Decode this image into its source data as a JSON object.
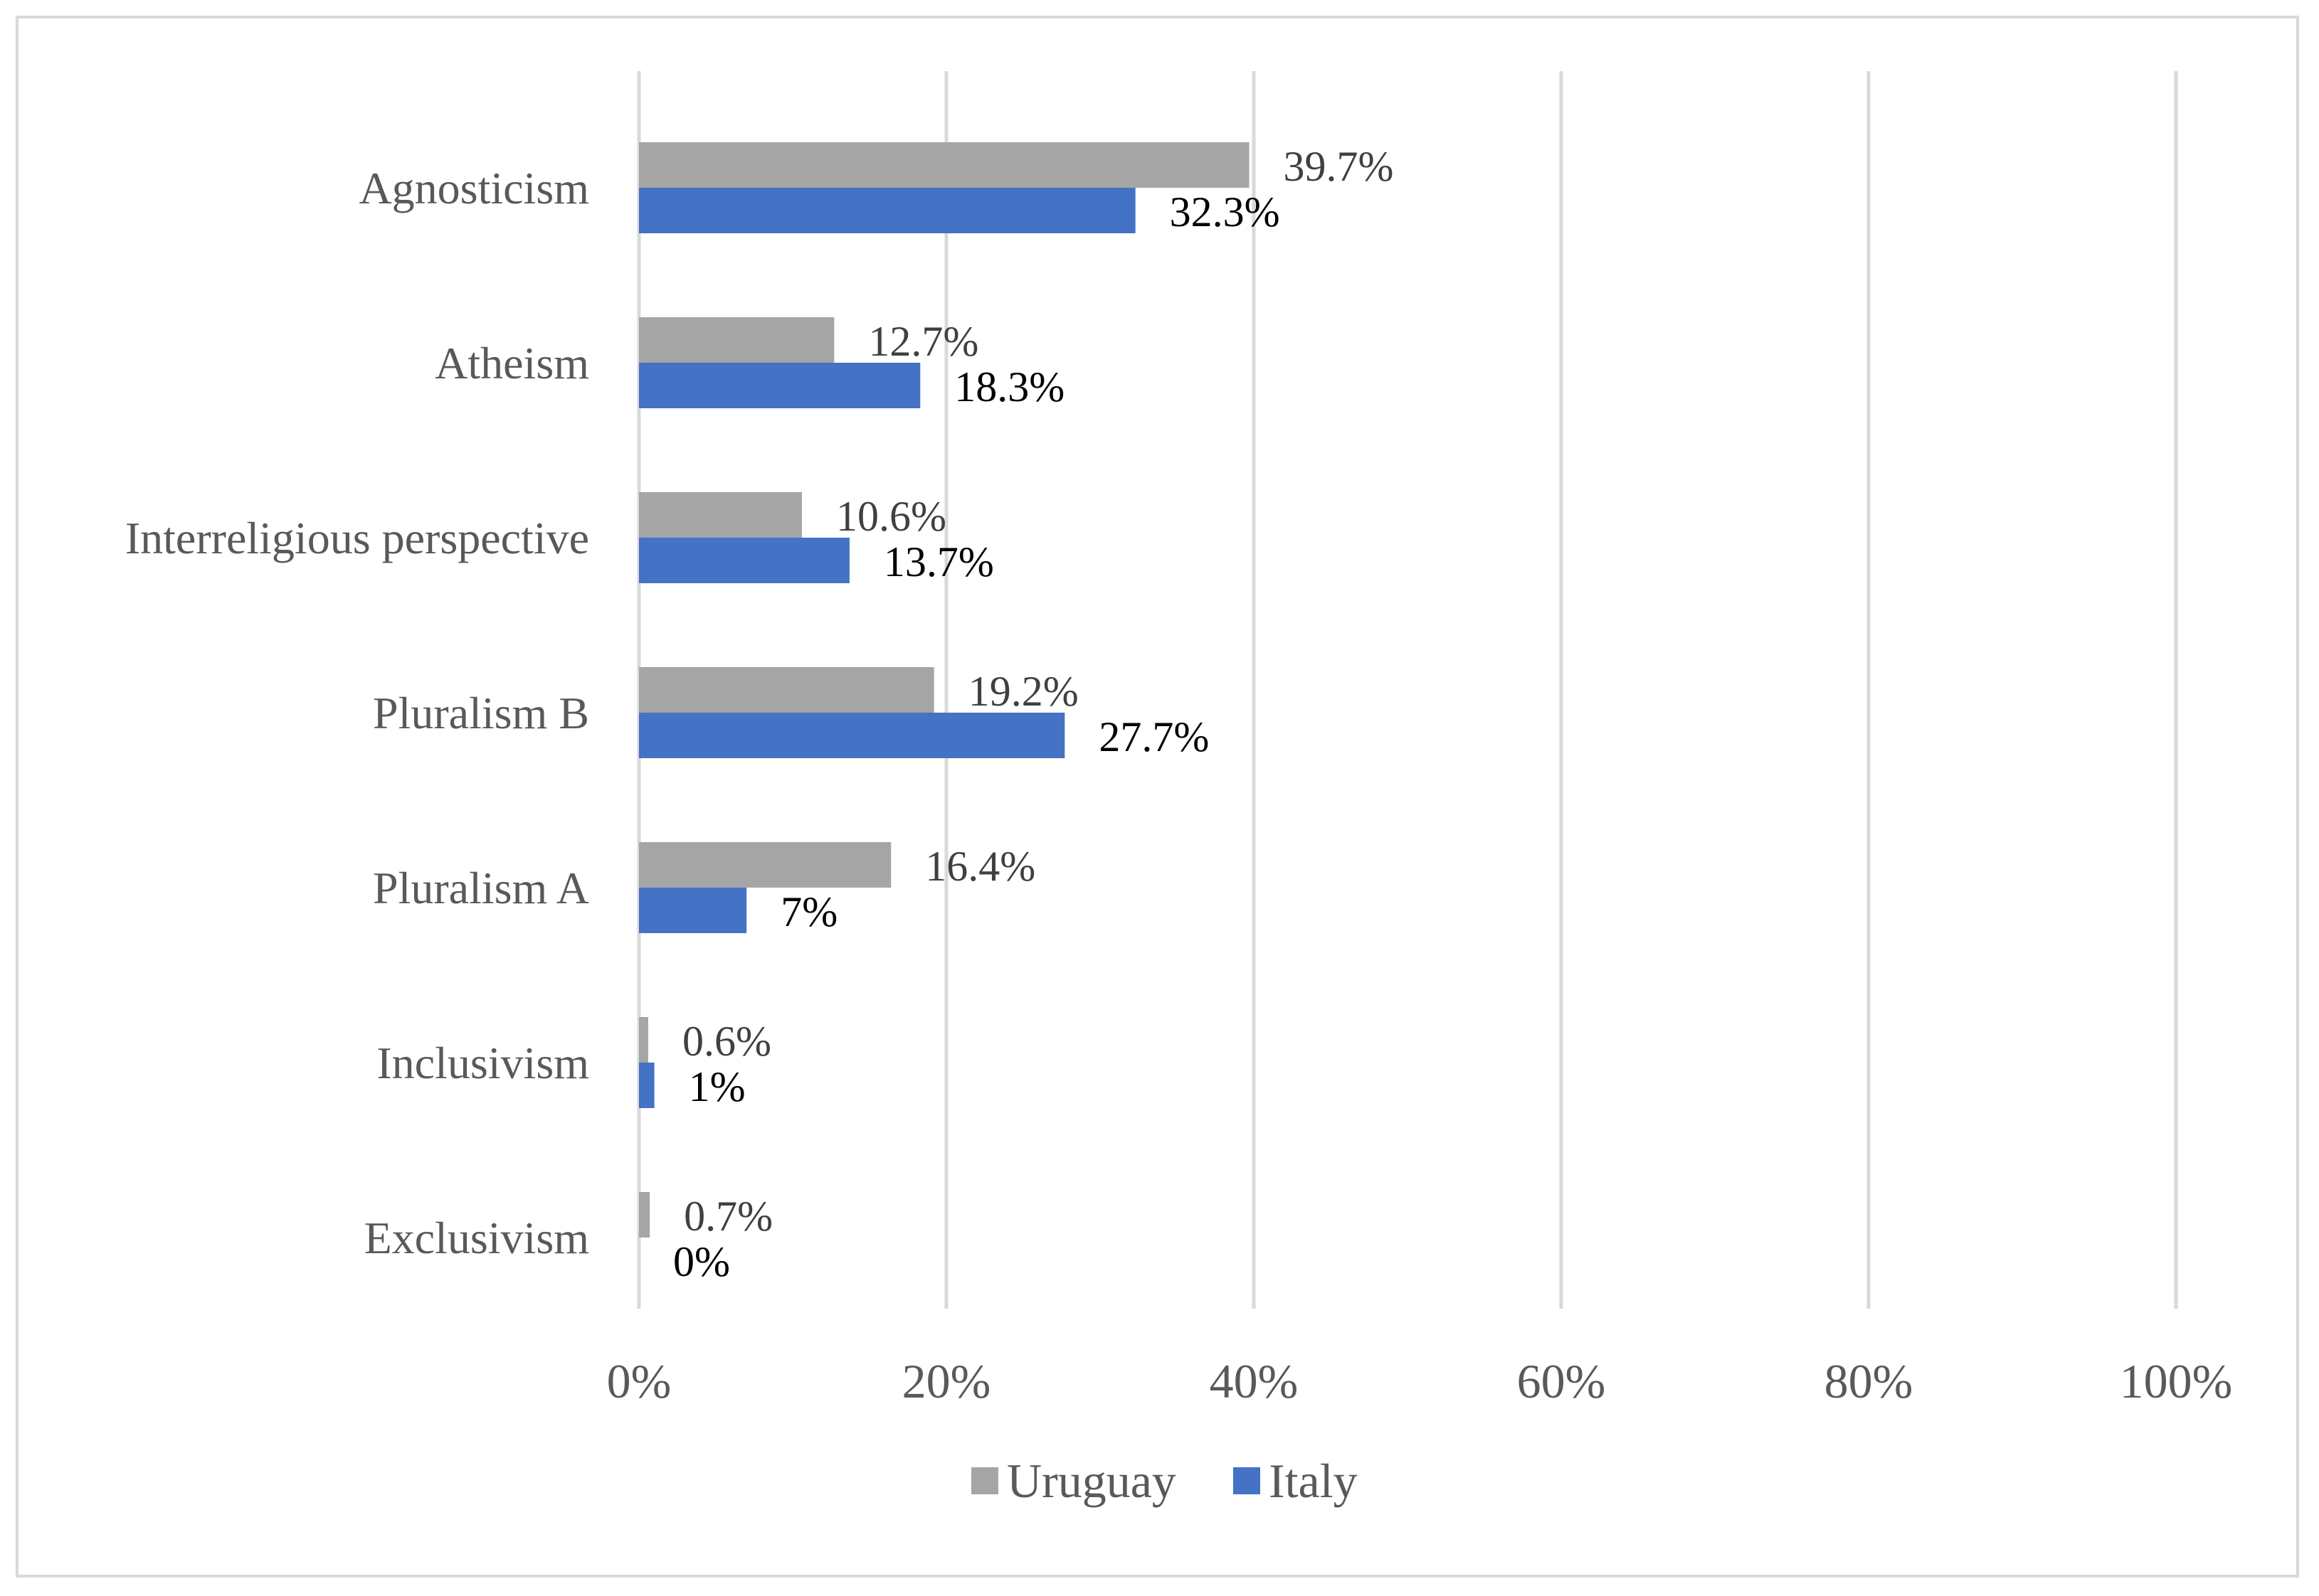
{
  "chart_data": {
    "type": "bar",
    "orientation": "horizontal",
    "title": "",
    "xlabel": "",
    "ylabel": "",
    "xlim": [
      0,
      100
    ],
    "x_ticks": [
      0,
      20,
      40,
      60,
      80,
      100
    ],
    "x_tick_labels": [
      "0%",
      "20%",
      "40%",
      "60%",
      "80%",
      "100%"
    ],
    "grid": "vertical",
    "categories": [
      "Agnosticism",
      "Atheism",
      "Interreligious perspective",
      "Pluralism B",
      "Pluralism A",
      "Inclusivism",
      "Exclusivism"
    ],
    "series": [
      {
        "name": "Uruguay",
        "color": "#a5a5a5",
        "values": [
          39.7,
          12.7,
          10.6,
          19.2,
          16.4,
          0.6,
          0.7
        ],
        "labels": [
          "39.7%",
          "12.7%",
          "10.6%",
          "19.2%",
          "16.4%",
          "0.6%",
          "0.7%"
        ]
      },
      {
        "name": "Italy",
        "color": "#4472c4",
        "values": [
          32.3,
          18.3,
          13.7,
          27.7,
          7,
          1,
          0
        ],
        "labels": [
          "32.3%",
          "18.3%",
          "13.7%",
          "27.7%",
          "7%",
          "1%",
          "0%"
        ]
      }
    ],
    "legend": {
      "position": "bottom",
      "items": [
        "Uruguay",
        "Italy"
      ]
    }
  }
}
